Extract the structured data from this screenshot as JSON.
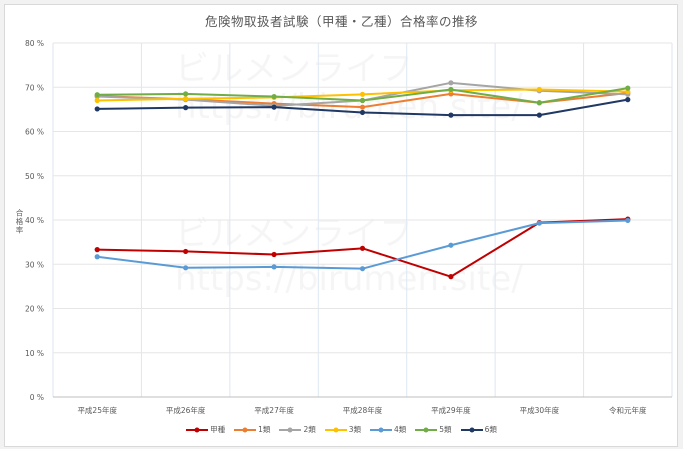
{
  "title": "危険物取扱者試験（甲種・乙種）合格率の推移",
  "watermark": {
    "line1": "ビルメンライフ",
    "line2": "https://birumen.site/"
  },
  "chart_data": {
    "type": "line",
    "title": "危険物取扱者試験（甲種・乙種）合格率の推移",
    "xlabel": "",
    "ylabel": "合格率",
    "ylim": [
      0,
      80
    ],
    "yticks": [
      "0 %",
      "10 %",
      "20 %",
      "30 %",
      "40 %",
      "50 %",
      "60 %",
      "70 %",
      "80 %"
    ],
    "grid": true,
    "legend_position": "bottom",
    "categories": [
      "平成25年度",
      "平成26年度",
      "平成27年度",
      "平成28年度",
      "平成29年度",
      "平成30年度",
      "令和元年度"
    ],
    "series": [
      {
        "name": "甲種",
        "color": "#c00000",
        "values": [
          33.3,
          32.9,
          32.2,
          33.6,
          27.2,
          39.4,
          40.2
        ]
      },
      {
        "name": "1類",
        "color": "#ed7d31",
        "values": [
          68.0,
          67.3,
          66.3,
          65.5,
          68.5,
          66.5,
          68.7
        ]
      },
      {
        "name": "2類",
        "color": "#a5a5a5",
        "values": [
          67.9,
          67.2,
          65.8,
          67.0,
          71.0,
          69.2,
          68.4
        ]
      },
      {
        "name": "3類",
        "color": "#ffc000",
        "values": [
          67.0,
          67.4,
          67.7,
          68.4,
          69.3,
          69.5,
          69.0
        ]
      },
      {
        "name": "4類",
        "color": "#5b9bd5",
        "values": [
          31.7,
          29.2,
          29.4,
          29.0,
          34.3,
          39.3,
          39.9
        ]
      },
      {
        "name": "5類",
        "color": "#70ad47",
        "values": [
          68.3,
          68.5,
          67.9,
          67.0,
          69.5,
          66.5,
          69.8
        ]
      },
      {
        "name": "6類",
        "color": "#203864",
        "values": [
          65.1,
          65.4,
          65.5,
          64.3,
          63.7,
          63.7,
          67.2
        ]
      }
    ]
  }
}
